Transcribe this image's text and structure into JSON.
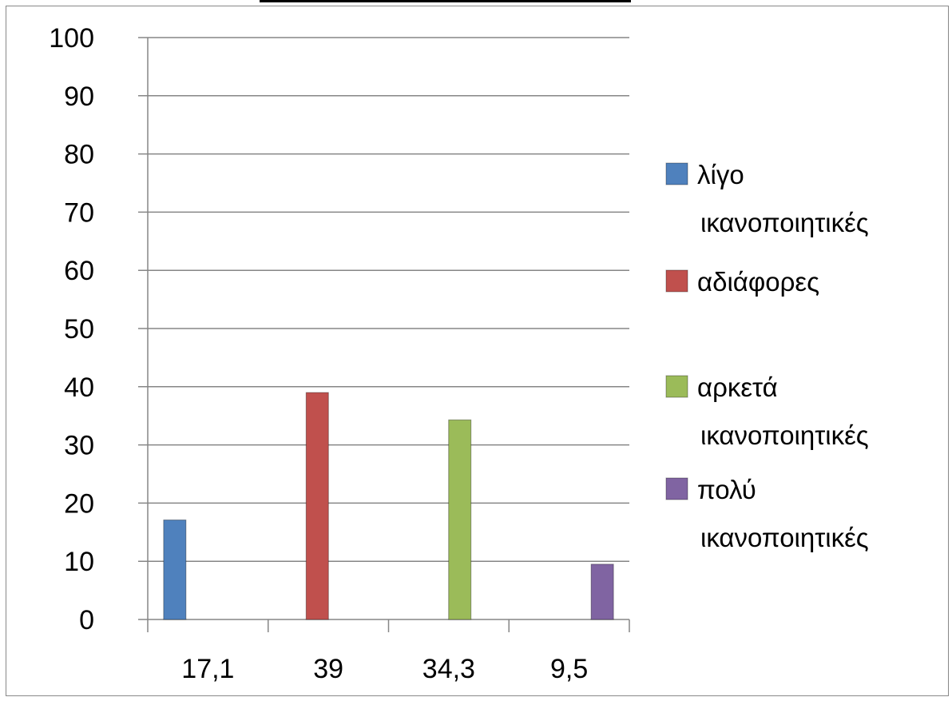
{
  "chart_data": {
    "type": "bar",
    "title": "",
    "xlabel": "",
    "ylabel": "",
    "ylim": [
      0,
      100
    ],
    "yticks": [
      0,
      10,
      20,
      30,
      40,
      50,
      60,
      70,
      80,
      90,
      100
    ],
    "grid": true,
    "legend_position": "right",
    "categories": [
      "17,1",
      "39",
      "34,3",
      "9,5"
    ],
    "series": [
      {
        "name": "λίγο ικανοποιητικές",
        "name_lines": [
          "λίγο",
          "ικανοποιητικές"
        ],
        "color": "#4F81BD",
        "values": [
          17.1,
          null,
          null,
          null
        ]
      },
      {
        "name": "αδιάφορες",
        "name_lines": [
          "αδιάφορες"
        ],
        "color": "#C0504D",
        "values": [
          null,
          39,
          null,
          null
        ]
      },
      {
        "name": "αρκετά ικανοποιητικές",
        "name_lines": [
          "αρκετά",
          "ικανοποιητικές"
        ],
        "color": "#9BBB59",
        "values": [
          null,
          null,
          34.3,
          null
        ]
      },
      {
        "name": "πολύ ικανοποιητικές",
        "name_lines": [
          "πολύ",
          "ικανοποιητικές"
        ],
        "color": "#8064A2",
        "values": [
          null,
          null,
          null,
          9.5
        ]
      }
    ]
  }
}
